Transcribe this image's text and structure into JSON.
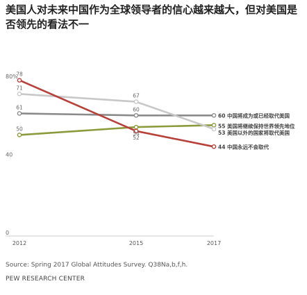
{
  "header": {
    "title": "美国人对未来中国作为全球领导者的信心越来越大，但对美国是否领先的看法不一"
  },
  "chart_data": {
    "type": "line",
    "title": "美国人对未来中国作为全球领导者的信心越来越大，但对美国是否领先的看法不一",
    "x": [
      2012,
      2015,
      2017
    ],
    "xticks": [
      "2012",
      "2015",
      "2017"
    ],
    "y_axis_top_label": "80%",
    "yticks": [
      "40",
      "0"
    ],
    "ylim": [
      0,
      80
    ],
    "series": [
      {
        "name": "中国将成为或已经取代美国",
        "values": [
          61,
          60,
          60
        ],
        "color": "#8a8a8a"
      },
      {
        "name": "美国将继续保持世界领先地位",
        "values": [
          50,
          54,
          55
        ],
        "color": "#8c9a3c"
      },
      {
        "name": "美国以外的国家将取代美国",
        "values": [
          71,
          67,
          53
        ],
        "color": "#c8c8c8"
      },
      {
        "name": "中国永远不会取代",
        "values": [
          78,
          52,
          44
        ],
        "color": "#b8403a"
      }
    ],
    "end_labels": [
      "60 中国将成为或已经取代美国",
      "55 美国将继续保持世界领先地位",
      "53 美国以外的国家将取代美国",
      "44 中国永远不会取代"
    ]
  },
  "footer": {
    "source": "Source: Spring 2017 Global Attitudes Survey. Q38Na,b,f,h.",
    "org": "PEW RESEARCH CENTER"
  }
}
